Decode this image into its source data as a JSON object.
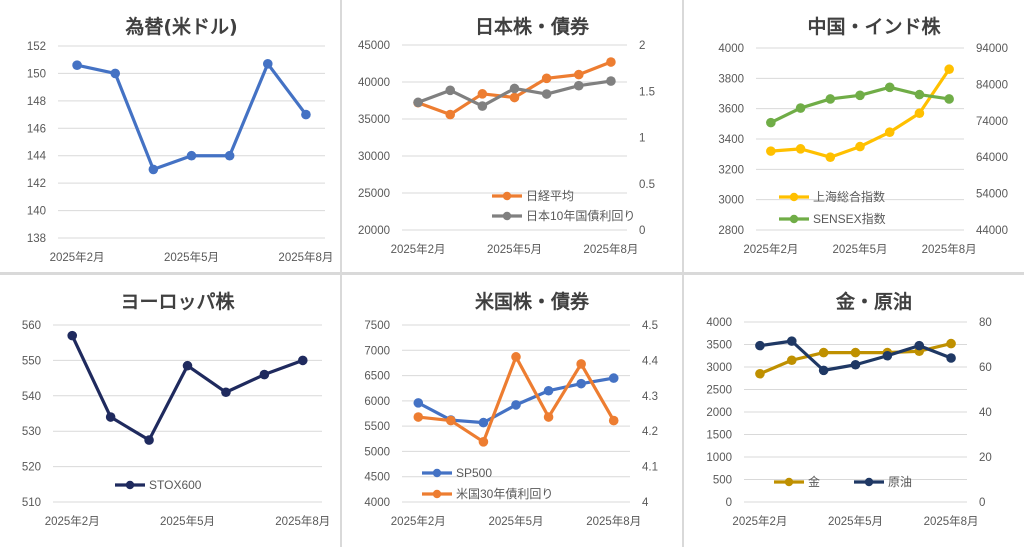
{
  "chart_data": [
    {
      "type": "line",
      "title": "為替(米ドル)",
      "x": [
        "2025-02",
        "2025-03",
        "2025-04",
        "2025-05",
        "2025-06",
        "2025-07",
        "2025-08"
      ],
      "x_tick_labels": [
        "2025年2月",
        "2025年5月",
        "2025年8月"
      ],
      "y_left": {
        "range": [
          138,
          152
        ],
        "ticks": [
          138,
          140,
          142,
          144,
          146,
          148,
          150,
          152
        ]
      },
      "series": [
        {
          "name": "",
          "axis": "left",
          "color": "#4472C4",
          "values": [
            150.6,
            150.0,
            143.0,
            144.0,
            144.0,
            150.7,
            147.0
          ]
        }
      ],
      "legend": []
    },
    {
      "type": "line",
      "title": "日本株・債券",
      "x": [
        "2025-02",
        "2025-03",
        "2025-04",
        "2025-05",
        "2025-06",
        "2025-07",
        "2025-08"
      ],
      "x_tick_labels": [
        "2025年2月",
        "2025年5月",
        "2025年8月"
      ],
      "y_left": {
        "range": [
          20000,
          45000
        ],
        "ticks": [
          20000,
          25000,
          30000,
          35000,
          40000,
          45000
        ]
      },
      "y_right": {
        "range": [
          0,
          2
        ],
        "ticks": [
          "0",
          "0.5",
          "1",
          "1.5",
          "2"
        ]
      },
      "series": [
        {
          "name": "日経平均",
          "axis": "left",
          "color": "#ED7D31",
          "values": [
            37200,
            35600,
            38400,
            37900,
            40500,
            41000,
            42700
          ]
        },
        {
          "name": "日本10年国債利回り",
          "axis": "right",
          "color": "#808080",
          "values": [
            1.38,
            1.51,
            1.34,
            1.53,
            1.47,
            1.56,
            1.61
          ]
        }
      ],
      "legend": [
        "日経平均",
        "日本10年国債利回り"
      ]
    },
    {
      "type": "line",
      "title": "中国・インド株",
      "x": [
        "2025-02",
        "2025-03",
        "2025-04",
        "2025-05",
        "2025-06",
        "2025-07",
        "2025-08"
      ],
      "x_tick_labels": [
        "2025年2月",
        "2025年5月",
        "2025年8月"
      ],
      "y_left": {
        "range": [
          2800,
          4000
        ],
        "ticks": [
          2800,
          3000,
          3200,
          3400,
          3600,
          3800,
          4000
        ]
      },
      "y_right": {
        "range": [
          44000,
          94000
        ],
        "ticks": [
          44000,
          54000,
          64000,
          74000,
          84000,
          94000
        ]
      },
      "series": [
        {
          "name": "上海総合指数",
          "axis": "left",
          "color": "#FFC000",
          "values": [
            3320,
            3335,
            3280,
            3350,
            3445,
            3570,
            3860
          ]
        },
        {
          "name": "SENSEX指数",
          "axis": "right",
          "color": "#70AD47",
          "values": [
            73500,
            77500,
            80000,
            81000,
            83200,
            81200,
            80000
          ]
        }
      ],
      "legend": [
        "上海総合指数",
        "SENSEX指数"
      ]
    },
    {
      "type": "line",
      "title": "ヨーロッパ株",
      "x": [
        "2025-02",
        "2025-03",
        "2025-04",
        "2025-05",
        "2025-06",
        "2025-07",
        "2025-08"
      ],
      "x_tick_labels": [
        "2025年2月",
        "2025年5月",
        "2025年8月"
      ],
      "y_left": {
        "range": [
          510,
          560
        ],
        "ticks": [
          510,
          520,
          530,
          540,
          550,
          560
        ]
      },
      "series": [
        {
          "name": "STOX600",
          "axis": "left",
          "color": "#1F2A5E",
          "values": [
            557,
            534,
            527.5,
            548.5,
            541,
            546,
            550
          ]
        }
      ],
      "legend": [
        "STOX600"
      ]
    },
    {
      "type": "line",
      "title": "米国株・債券",
      "x": [
        "2025-02",
        "2025-03",
        "2025-04",
        "2025-05",
        "2025-06",
        "2025-07",
        "2025-08"
      ],
      "x_tick_labels": [
        "2025年2月",
        "2025年5月",
        "2025年8月"
      ],
      "y_left": {
        "range": [
          4000,
          7500
        ],
        "ticks": [
          4000,
          4500,
          5000,
          5500,
          6000,
          6500,
          7000,
          7500
        ]
      },
      "y_right": {
        "range": [
          4,
          4.5
        ],
        "ticks": [
          "4",
          "4.1",
          "4.2",
          "4.3",
          "4.4",
          "4.5"
        ]
      },
      "series": [
        {
          "name": "SP500",
          "axis": "left",
          "color": "#4472C4",
          "values": [
            5960,
            5620,
            5570,
            5920,
            6200,
            6340,
            6450
          ]
        },
        {
          "name": "米国30年債利回り",
          "axis": "right",
          "color": "#ED7D31",
          "values": [
            4.24,
            4.23,
            4.17,
            4.41,
            4.24,
            4.39,
            4.23
          ]
        }
      ],
      "legend": [
        "SP500",
        "米国30年債利回り"
      ]
    },
    {
      "type": "line",
      "title": "金・原油",
      "x": [
        "2025-02",
        "2025-03",
        "2025-04",
        "2025-05",
        "2025-06",
        "2025-07",
        "2025-08"
      ],
      "x_tick_labels": [
        "2025年2月",
        "2025年5月",
        "2025年8月"
      ],
      "y_left": {
        "range": [
          0,
          4000
        ],
        "ticks": [
          0,
          500,
          1000,
          1500,
          2000,
          2500,
          3000,
          3500,
          4000
        ]
      },
      "y_right": {
        "range": [
          0,
          80
        ],
        "ticks": [
          "0",
          "20",
          "40",
          "60",
          "80"
        ]
      },
      "series": [
        {
          "name": "金",
          "axis": "left",
          "color": "#BF9000",
          "values": [
            2850,
            3150,
            3320,
            3320,
            3320,
            3350,
            3520
          ]
        },
        {
          "name": "原油",
          "axis": "right",
          "color": "#1F3864",
          "values": [
            69.5,
            71.5,
            58.5,
            61,
            65,
            69.5,
            64
          ]
        }
      ],
      "legend": [
        "金",
        "原油"
      ]
    }
  ]
}
